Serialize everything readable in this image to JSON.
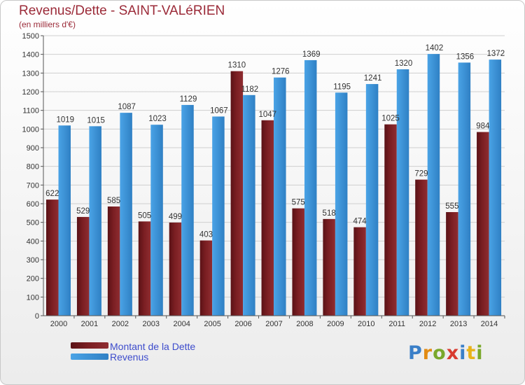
{
  "header": {
    "title": "Revenus/Dette - SAINT-VALéRIEN",
    "subtitle": "(en milliers d'€)"
  },
  "logo": {
    "letters": [
      "P",
      "r",
      "o",
      "x",
      "i",
      "t",
      "i"
    ]
  },
  "colors": {
    "dette": "#7a1e22",
    "revenus": "#3c93d6",
    "grid": "#cfcfcf",
    "axis": "#555555"
  },
  "chart_data": {
    "type": "bar",
    "categories": [
      "2000",
      "2001",
      "2002",
      "2003",
      "2004",
      "2005",
      "2006",
      "2007",
      "2008",
      "2009",
      "2010",
      "2011",
      "2012",
      "2013",
      "2014"
    ],
    "series": [
      {
        "name": "Montant de la Dette",
        "values": [
          622,
          529,
          585,
          505,
          499,
          403,
          1310,
          1047,
          575,
          518,
          474,
          1025,
          729,
          555,
          984
        ]
      },
      {
        "name": "Revenus",
        "values": [
          1019,
          1015,
          1087,
          1023,
          1129,
          1067,
          1182,
          1276,
          1369,
          1195,
          1241,
          1320,
          1402,
          1356,
          1372
        ]
      }
    ],
    "yticks": [
      0,
      100,
      200,
      300,
      400,
      500,
      600,
      700,
      800,
      900,
      1000,
      1100,
      1200,
      1300,
      1400,
      1500
    ],
    "ylim": [
      0,
      1500
    ],
    "grid": true,
    "legend": "bottom-left"
  }
}
